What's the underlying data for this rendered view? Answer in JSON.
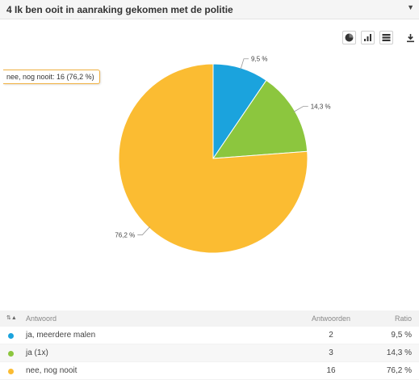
{
  "header": {
    "title": "4 Ik ben ooit in aanraking gekomen met de politie"
  },
  "toolbar": {
    "pie_icon": "pie-chart-icon",
    "bar_icon": "bar-chart-icon",
    "table_icon": "table-icon",
    "download_icon": "download-icon"
  },
  "tooltip": {
    "text": "nee, nog nooit: 16 (76,2 %)"
  },
  "chart_data": {
    "type": "pie",
    "labels": [
      "ja, meerdere malen",
      "ja (1x)",
      "nee, nog nooit"
    ],
    "values": [
      2,
      3,
      16
    ],
    "percent_labels": [
      "9,5 %",
      "14,3 %",
      "76,2 %"
    ],
    "colors": [
      "#1ba3dd",
      "#8cc63e",
      "#fbbc32"
    ]
  },
  "table": {
    "columns": {
      "label": "Antwoord",
      "count": "Antwoorden",
      "ratio": "Ratio"
    },
    "rows": [
      {
        "label": "ja, meerdere malen",
        "count": "2",
        "ratio": "9,5 %",
        "color": "#1ba3dd"
      },
      {
        "label": "ja (1x)",
        "count": "3",
        "ratio": "14,3 %",
        "color": "#8cc63e"
      },
      {
        "label": "nee, nog nooit",
        "count": "16",
        "ratio": "76,2 %",
        "color": "#fbbc32"
      }
    ]
  }
}
